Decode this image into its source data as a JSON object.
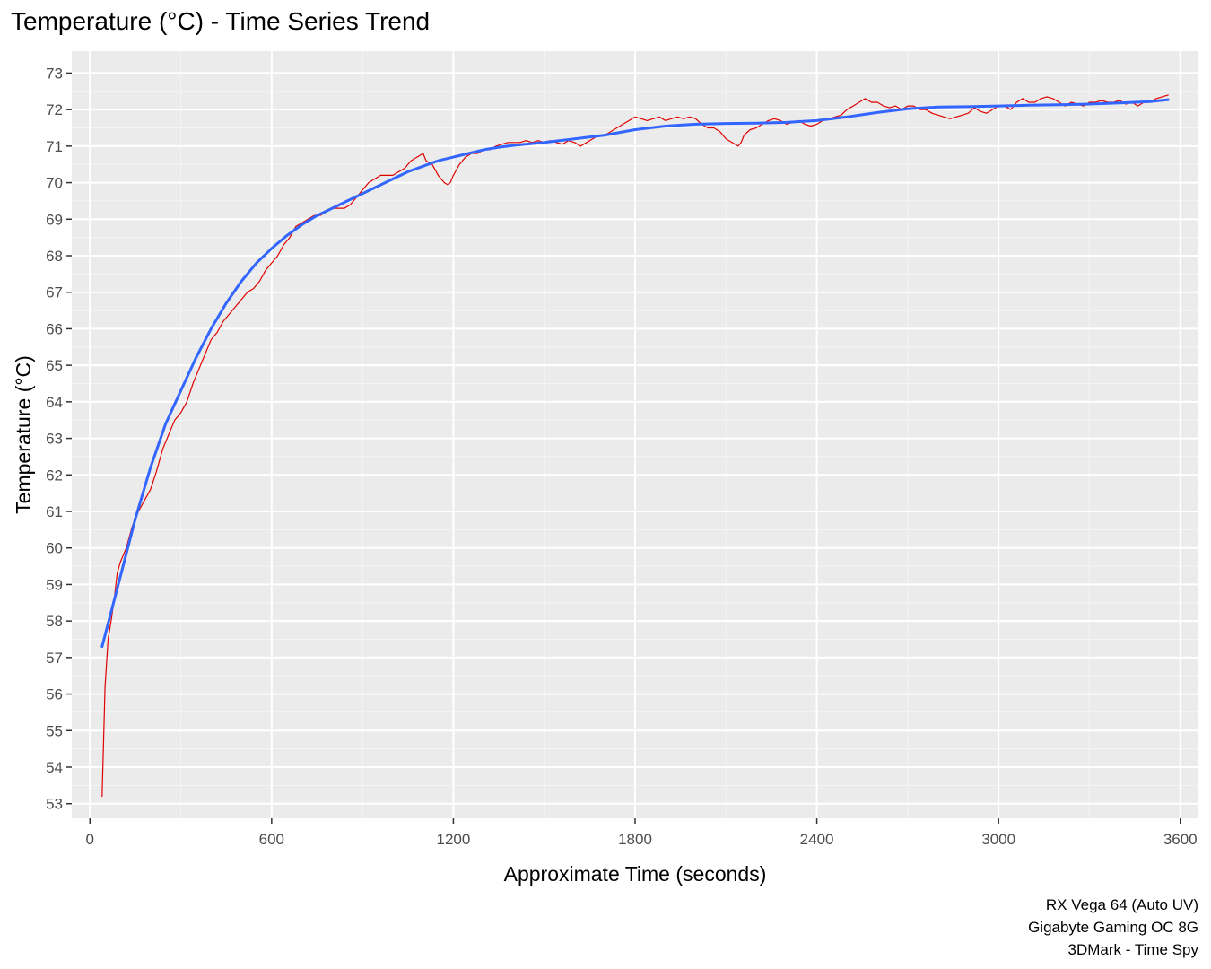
{
  "chart_data": {
    "type": "line",
    "title": "Temperature (°C) - Time Series Trend",
    "xlabel": "Approximate Time (seconds)",
    "ylabel": "Temperature (°C)",
    "xlim": [
      -60,
      3660
    ],
    "ylim": [
      52.6,
      73.6
    ],
    "x_ticks": [
      0,
      600,
      1200,
      1800,
      2400,
      3000,
      3600
    ],
    "y_ticks": [
      53,
      54,
      55,
      56,
      57,
      58,
      59,
      60,
      61,
      62,
      63,
      64,
      65,
      66,
      67,
      68,
      69,
      70,
      71,
      72,
      73
    ],
    "grid": true,
    "legend": "none",
    "caption": [
      "RX Vega 64 (Auto UV)",
      "Gigabyte Gaming OC 8G",
      "3DMark - Time Spy"
    ],
    "series": [
      {
        "color": "#e00000",
        "style": "raw",
        "points": [
          [
            40,
            53.2
          ],
          [
            50,
            56.2
          ],
          [
            60,
            57.5
          ],
          [
            70,
            58.0
          ],
          [
            80,
            58.6
          ],
          [
            90,
            59.3
          ],
          [
            100,
            59.6
          ],
          [
            120,
            60.0
          ],
          [
            140,
            60.6
          ],
          [
            160,
            61.0
          ],
          [
            180,
            61.3
          ],
          [
            200,
            61.6
          ],
          [
            220,
            62.1
          ],
          [
            240,
            62.7
          ],
          [
            260,
            63.1
          ],
          [
            280,
            63.5
          ],
          [
            300,
            63.7
          ],
          [
            320,
            64.0
          ],
          [
            340,
            64.5
          ],
          [
            360,
            64.9
          ],
          [
            380,
            65.3
          ],
          [
            400,
            65.7
          ],
          [
            420,
            65.9
          ],
          [
            440,
            66.2
          ],
          [
            460,
            66.4
          ],
          [
            480,
            66.6
          ],
          [
            500,
            66.8
          ],
          [
            520,
            67.0
          ],
          [
            540,
            67.1
          ],
          [
            560,
            67.3
          ],
          [
            580,
            67.6
          ],
          [
            600,
            67.8
          ],
          [
            620,
            68.0
          ],
          [
            640,
            68.3
          ],
          [
            660,
            68.5
          ],
          [
            680,
            68.8
          ],
          [
            700,
            68.9
          ],
          [
            720,
            69.0
          ],
          [
            740,
            69.1
          ],
          [
            760,
            69.1
          ],
          [
            780,
            69.2
          ],
          [
            800,
            69.3
          ],
          [
            820,
            69.3
          ],
          [
            840,
            69.3
          ],
          [
            860,
            69.4
          ],
          [
            880,
            69.6
          ],
          [
            900,
            69.8
          ],
          [
            920,
            70.0
          ],
          [
            940,
            70.1
          ],
          [
            960,
            70.2
          ],
          [
            980,
            70.2
          ],
          [
            1000,
            70.2
          ],
          [
            1020,
            70.3
          ],
          [
            1040,
            70.4
          ],
          [
            1060,
            70.6
          ],
          [
            1080,
            70.7
          ],
          [
            1100,
            70.8
          ],
          [
            1110,
            70.6
          ],
          [
            1130,
            70.5
          ],
          [
            1150,
            70.2
          ],
          [
            1170,
            70.0
          ],
          [
            1180,
            69.95
          ],
          [
            1190,
            70.0
          ],
          [
            1200,
            70.2
          ],
          [
            1220,
            70.5
          ],
          [
            1240,
            70.7
          ],
          [
            1260,
            70.8
          ],
          [
            1280,
            70.8
          ],
          [
            1300,
            70.9
          ],
          [
            1320,
            70.9
          ],
          [
            1340,
            71.0
          ],
          [
            1360,
            71.05
          ],
          [
            1380,
            71.1
          ],
          [
            1400,
            71.1
          ],
          [
            1420,
            71.1
          ],
          [
            1440,
            71.15
          ],
          [
            1460,
            71.1
          ],
          [
            1480,
            71.15
          ],
          [
            1500,
            71.1
          ],
          [
            1520,
            71.15
          ],
          [
            1540,
            71.1
          ],
          [
            1560,
            71.05
          ],
          [
            1580,
            71.15
          ],
          [
            1600,
            71.1
          ],
          [
            1620,
            71.0
          ],
          [
            1640,
            71.1
          ],
          [
            1660,
            71.2
          ],
          [
            1680,
            71.3
          ],
          [
            1700,
            71.3
          ],
          [
            1720,
            71.4
          ],
          [
            1740,
            71.5
          ],
          [
            1760,
            71.6
          ],
          [
            1780,
            71.7
          ],
          [
            1800,
            71.8
          ],
          [
            1820,
            71.75
          ],
          [
            1840,
            71.7
          ],
          [
            1860,
            71.75
          ],
          [
            1880,
            71.8
          ],
          [
            1900,
            71.7
          ],
          [
            1920,
            71.75
          ],
          [
            1940,
            71.8
          ],
          [
            1960,
            71.75
          ],
          [
            1980,
            71.8
          ],
          [
            2000,
            71.75
          ],
          [
            2020,
            71.6
          ],
          [
            2040,
            71.5
          ],
          [
            2060,
            71.5
          ],
          [
            2080,
            71.4
          ],
          [
            2100,
            71.2
          ],
          [
            2120,
            71.1
          ],
          [
            2140,
            71.0
          ],
          [
            2150,
            71.1
          ],
          [
            2160,
            71.3
          ],
          [
            2180,
            71.45
          ],
          [
            2200,
            71.5
          ],
          [
            2220,
            71.6
          ],
          [
            2240,
            71.7
          ],
          [
            2260,
            71.75
          ],
          [
            2280,
            71.7
          ],
          [
            2300,
            71.6
          ],
          [
            2320,
            71.65
          ],
          [
            2340,
            71.7
          ],
          [
            2360,
            71.6
          ],
          [
            2380,
            71.55
          ],
          [
            2400,
            71.6
          ],
          [
            2420,
            71.7
          ],
          [
            2440,
            71.75
          ],
          [
            2460,
            71.8
          ],
          [
            2480,
            71.85
          ],
          [
            2500,
            72.0
          ],
          [
            2520,
            72.1
          ],
          [
            2540,
            72.2
          ],
          [
            2560,
            72.3
          ],
          [
            2580,
            72.2
          ],
          [
            2600,
            72.2
          ],
          [
            2620,
            72.1
          ],
          [
            2640,
            72.05
          ],
          [
            2660,
            72.1
          ],
          [
            2680,
            72.0
          ],
          [
            2700,
            72.1
          ],
          [
            2720,
            72.1
          ],
          [
            2740,
            72.0
          ],
          [
            2760,
            72.0
          ],
          [
            2780,
            71.9
          ],
          [
            2800,
            71.85
          ],
          [
            2820,
            71.8
          ],
          [
            2840,
            71.75
          ],
          [
            2860,
            71.8
          ],
          [
            2880,
            71.85
          ],
          [
            2900,
            71.9
          ],
          [
            2920,
            72.05
          ],
          [
            2940,
            71.95
          ],
          [
            2960,
            71.9
          ],
          [
            2980,
            72.0
          ],
          [
            3000,
            72.1
          ],
          [
            3020,
            72.1
          ],
          [
            3040,
            72.0
          ],
          [
            3060,
            72.2
          ],
          [
            3080,
            72.3
          ],
          [
            3100,
            72.2
          ],
          [
            3120,
            72.2
          ],
          [
            3140,
            72.3
          ],
          [
            3160,
            72.35
          ],
          [
            3180,
            72.3
          ],
          [
            3200,
            72.2
          ],
          [
            3220,
            72.1
          ],
          [
            3240,
            72.2
          ],
          [
            3260,
            72.15
          ],
          [
            3280,
            72.1
          ],
          [
            3300,
            72.2
          ],
          [
            3320,
            72.2
          ],
          [
            3340,
            72.25
          ],
          [
            3360,
            72.2
          ],
          [
            3380,
            72.2
          ],
          [
            3400,
            72.25
          ],
          [
            3420,
            72.15
          ],
          [
            3440,
            72.2
          ],
          [
            3460,
            72.1
          ],
          [
            3480,
            72.2
          ],
          [
            3500,
            72.2
          ],
          [
            3520,
            72.3
          ],
          [
            3540,
            72.35
          ],
          [
            3560,
            72.4
          ]
        ]
      },
      {
        "color": "#3366ff",
        "style": "smooth",
        "points": [
          [
            40,
            57.3
          ],
          [
            100,
            59.2
          ],
          [
            150,
            60.8
          ],
          [
            200,
            62.2
          ],
          [
            250,
            63.4
          ],
          [
            300,
            64.3
          ],
          [
            350,
            65.2
          ],
          [
            400,
            66.0
          ],
          [
            450,
            66.7
          ],
          [
            500,
            67.3
          ],
          [
            550,
            67.8
          ],
          [
            600,
            68.2
          ],
          [
            650,
            68.55
          ],
          [
            700,
            68.85
          ],
          [
            750,
            69.1
          ],
          [
            800,
            69.3
          ],
          [
            850,
            69.5
          ],
          [
            900,
            69.7
          ],
          [
            950,
            69.9
          ],
          [
            1000,
            70.1
          ],
          [
            1050,
            70.3
          ],
          [
            1100,
            70.45
          ],
          [
            1150,
            70.6
          ],
          [
            1200,
            70.7
          ],
          [
            1250,
            70.8
          ],
          [
            1300,
            70.9
          ],
          [
            1350,
            70.97
          ],
          [
            1400,
            71.02
          ],
          [
            1500,
            71.1
          ],
          [
            1600,
            71.2
          ],
          [
            1700,
            71.3
          ],
          [
            1800,
            71.45
          ],
          [
            1900,
            71.55
          ],
          [
            2000,
            71.6
          ],
          [
            2100,
            71.62
          ],
          [
            2200,
            71.63
          ],
          [
            2300,
            71.65
          ],
          [
            2400,
            71.7
          ],
          [
            2500,
            71.8
          ],
          [
            2600,
            71.92
          ],
          [
            2700,
            72.02
          ],
          [
            2800,
            72.07
          ],
          [
            2900,
            72.08
          ],
          [
            3000,
            72.1
          ],
          [
            3100,
            72.12
          ],
          [
            3200,
            72.13
          ],
          [
            3300,
            72.15
          ],
          [
            3400,
            72.18
          ],
          [
            3500,
            72.22
          ],
          [
            3560,
            72.27
          ]
        ]
      }
    ]
  },
  "colors": {
    "panel_background": "#ebebeb",
    "grid_major": "#ffffff",
    "grid_minor": "#f5f5f5",
    "raw_line": "#e00000",
    "trend_line": "#3366ff"
  }
}
